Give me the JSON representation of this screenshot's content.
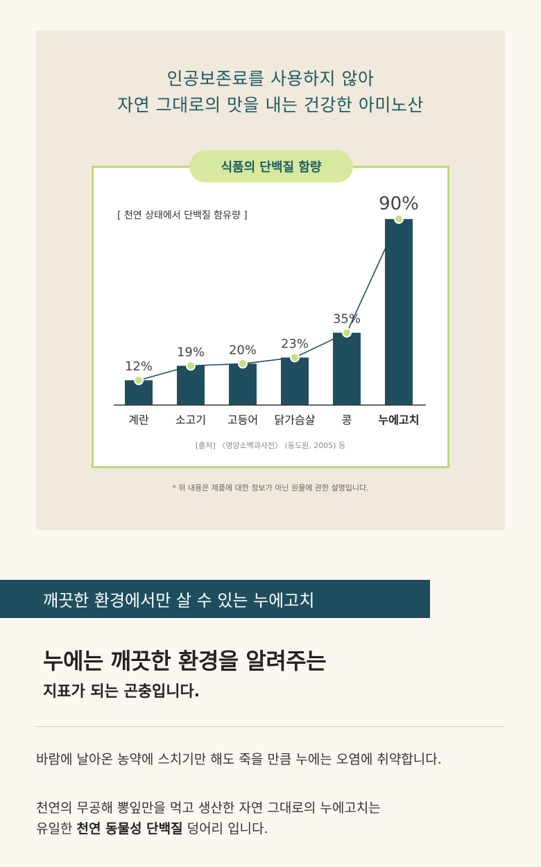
{
  "header": {
    "line1": "인공보존료를 사용하지 않아",
    "line2": "자연 그대로의 맛을 내는 건강한 아미노산"
  },
  "chart_data": {
    "type": "bar",
    "title": "식품의 단백질 함량",
    "subtitle": "[ 천연 상태에서 단백질 함유량 ]",
    "categories": [
      "계란",
      "소고기",
      "고등어",
      "닭가슴살",
      "콩",
      "누에고치"
    ],
    "values": [
      12,
      19,
      20,
      23,
      35,
      90
    ],
    "value_labels": [
      "12%",
      "19%",
      "20%",
      "23%",
      "35%",
      "90%"
    ],
    "highlight_index": 5,
    "ylim": [
      0,
      100
    ],
    "unit": "%",
    "grid": false,
    "overlay": "line connecting bar tops with circle markers",
    "colors": {
      "bar": "#1f4f5f",
      "line": "#1f4f5f",
      "marker": "#c5e07e",
      "accent": "#bcd97a"
    }
  },
  "source": "[출처] 〈영양소백과사전〉 (동도원, 2005) 등",
  "footnote": "* 위 내용은 제품에 대한 정보가 아닌 원물에 관한 설명입니다.",
  "banner": {
    "text": "깨끗한 환경에서만 살 수 있는 누에고치"
  },
  "heading": {
    "line1": "누에는 깨끗한 환경을 알려주는",
    "line2": "지표가 되는 곤충입니다."
  },
  "body": {
    "p1": "바람에 날아온 농약에 스치기만 해도 죽을 만큼 누에는 오염에 취약합니다.",
    "p2": "천연의 무공해 뽕잎만을 먹고 생산한 자연 그대로의 누에고치는",
    "p3_prefix": "유일한 ",
    "p3_bold": "천연 동물성 단백질",
    "p3_suffix": " 덩어리 입니다."
  }
}
